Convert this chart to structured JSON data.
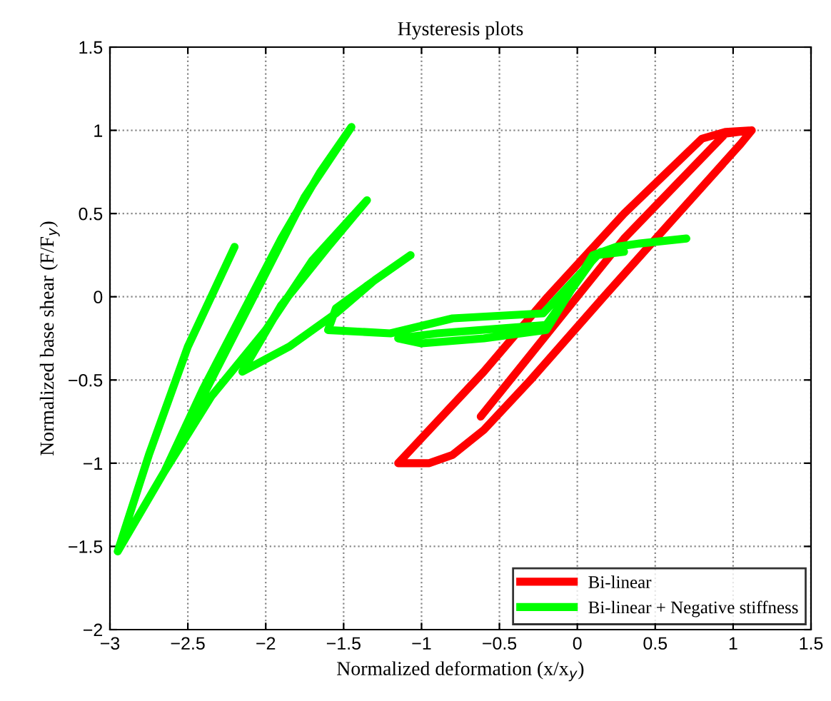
{
  "chart_data": {
    "type": "line",
    "title": "Hysteresis plots",
    "xlabel": "Normalized deformation (x/x$_{y}$)",
    "ylabel": "Normalized base shear (F/F$_{y}$)",
    "xlim": [
      -3,
      1.5
    ],
    "ylim": [
      -2,
      1.5
    ],
    "xticks": [
      {
        "value": -3,
        "label": "−3"
      },
      {
        "value": -2.5,
        "label": "−2.5"
      },
      {
        "value": -2,
        "label": "−2"
      },
      {
        "value": -1.5,
        "label": "−1.5"
      },
      {
        "value": -1,
        "label": "−1"
      },
      {
        "value": -0.5,
        "label": "−0.5"
      },
      0,
      0.5,
      1,
      1.5
    ],
    "yticks": [
      {
        "value": -2,
        "label": "−2"
      },
      {
        "value": -1.5,
        "label": "−1.5"
      },
      {
        "value": -1,
        "label": "−1"
      },
      {
        "value": -0.5,
        "label": "−0.5"
      },
      0,
      0.5,
      1,
      1.5
    ],
    "grid": true,
    "legend": "bottom right",
    "line_style": "solid",
    "series": [
      {
        "name": "Bi-linear",
        "color": "#ff0000",
        "x": [
          -0.62,
          0.3,
          0.95,
          1.12,
          1.05,
          0.6,
          0.17,
          -0.3,
          -0.6,
          -0.8,
          -0.95,
          -1.15,
          -1.05,
          -0.6,
          -0.19,
          0.3,
          0.8,
          0.95,
          1.12
        ],
        "values": [
          -0.72,
          0.35,
          0.98,
          1.0,
          0.92,
          0.45,
          0.0,
          -0.5,
          -0.8,
          -0.95,
          -1.0,
          -1.0,
          -0.9,
          -0.45,
          0.0,
          0.5,
          0.95,
          0.99,
          1.0
        ]
      },
      {
        "name": "Bi-linear + Negative stiffness",
        "color": "#00ff00",
        "x": [
          0.7,
          0.4,
          0.25,
          0.1,
          -0.2,
          -0.6,
          -1.0,
          -1.15,
          -0.9,
          -0.2,
          0.12,
          0.3,
          0.15,
          -0.22,
          -0.8,
          -1.2,
          -1.6,
          -1.55,
          -1.3,
          -1.07,
          -1.3,
          -1.55,
          -1.85,
          -2.15,
          -1.9,
          -1.6,
          -1.35,
          -1.7,
          -2.0,
          -2.35,
          -2.65,
          -2.4,
          -2.15,
          -1.9,
          -1.65,
          -1.45,
          -1.75,
          -2.05,
          -2.35,
          -2.65,
          -2.95,
          -2.75,
          -2.5,
          -2.2
        ],
        "values": [
          0.35,
          0.32,
          0.3,
          0.25,
          -0.2,
          -0.25,
          -0.28,
          -0.25,
          -0.22,
          -0.17,
          0.25,
          0.27,
          0.27,
          -0.1,
          -0.13,
          -0.22,
          -0.2,
          -0.07,
          0.1,
          0.25,
          0.1,
          -0.1,
          -0.3,
          -0.45,
          -0.05,
          0.3,
          0.58,
          0.22,
          -0.2,
          -0.6,
          -1.05,
          -0.55,
          -0.1,
          0.35,
          0.75,
          1.02,
          0.6,
          0.05,
          -0.5,
          -1.05,
          -1.53,
          -0.95,
          -0.3,
          0.3
        ]
      }
    ]
  }
}
